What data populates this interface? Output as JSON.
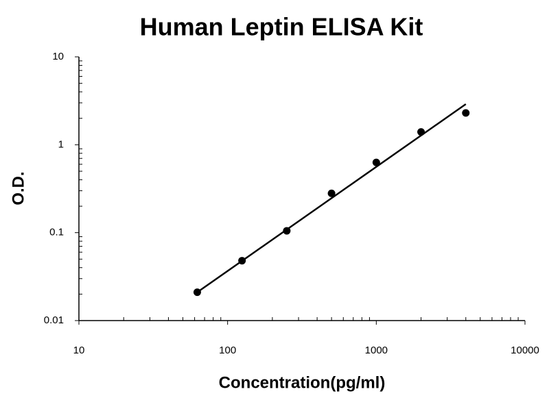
{
  "chart_data": {
    "type": "scatter",
    "title": "Human Leptin ELISA Kit",
    "x_label": "Concentration(pg/ml)",
    "y_label": "O.D.",
    "x": [
      62.5,
      125,
      250,
      500,
      1000,
      2000,
      4000
    ],
    "values": [
      0.021,
      0.048,
      0.105,
      0.28,
      0.63,
      1.4,
      2.3
    ],
    "color": "#000000",
    "trendline": {
      "x": [
        62.5,
        4000
      ],
      "values": [
        0.021,
        2.9
      ]
    },
    "xlim": [
      10,
      10000
    ],
    "xticks": [
      10,
      100,
      1000,
      10000
    ],
    "ylim": [
      0.01,
      10
    ],
    "yticks": [
      0.01,
      0.1,
      1,
      10
    ],
    "log_x": true,
    "log_y": true,
    "grid": false
  }
}
